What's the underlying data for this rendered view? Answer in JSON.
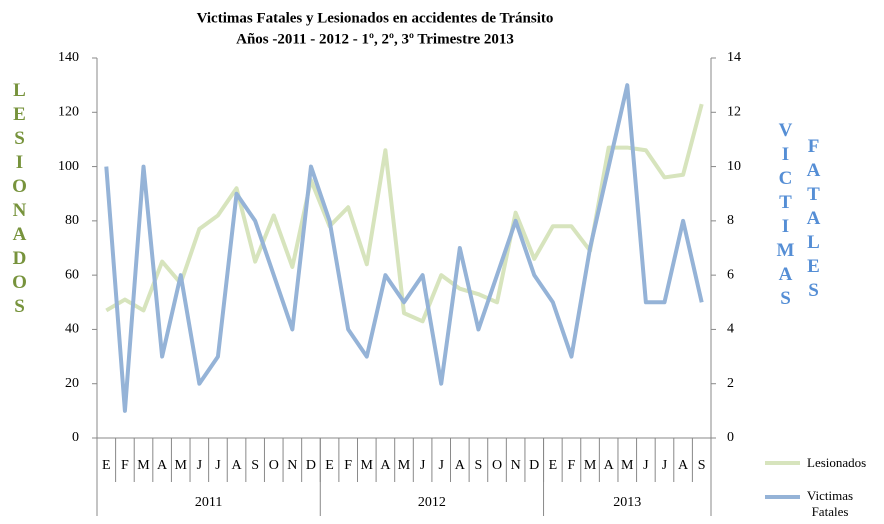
{
  "chart_data": {
    "type": "line",
    "title": "Victimas Fatales y Lesionados en accidentes de Tránsito",
    "subtitle": "Años -2011 - 2012 - 1º, 2º, 3º  Trimestre 2013",
    "ylabel": "LESIONADOS",
    "y2label": [
      "VICTIMAS",
      "FATALES"
    ],
    "categories": [
      "E",
      "F",
      "M",
      "A",
      "M",
      "J",
      "J",
      "A",
      "S",
      "O",
      "N",
      "D",
      "E",
      "F",
      "M",
      "A",
      "M",
      "J",
      "J",
      "A",
      "S",
      "O",
      "N",
      "D",
      "E",
      "F",
      "M",
      "A",
      "M",
      "J",
      "J",
      "A",
      "S"
    ],
    "years": [
      "2011",
      "2012",
      "2013"
    ],
    "series": [
      {
        "name": "Lesionados",
        "color": "#d7e4bd",
        "values": [
          47,
          51,
          47,
          65,
          57,
          77,
          82,
          92,
          65,
          82,
          63,
          95,
          78,
          85,
          64,
          106,
          46,
          43,
          60,
          55,
          53,
          50,
          83,
          66,
          78,
          78,
          69,
          107,
          107,
          106,
          96,
          97,
          123
        ]
      },
      {
        "name": "Victimas Fatales",
        "color": "#95b3d7",
        "axis": "y2",
        "values": [
          10,
          1,
          10,
          3,
          6,
          2,
          3,
          9,
          8,
          6,
          4,
          10,
          8,
          4,
          3,
          6,
          5,
          6,
          2,
          7,
          4,
          6,
          8,
          6,
          5,
          3,
          7,
          10,
          13,
          5,
          5,
          8,
          5
        ]
      }
    ],
    "ylim": [
      0,
      140
    ],
    "yticks": [
      0,
      20,
      40,
      60,
      80,
      100,
      120,
      140
    ],
    "y2lim": [
      0,
      14
    ],
    "y2ticks": [
      0,
      2,
      4,
      6,
      8,
      10,
      12,
      14
    ],
    "grid": false,
    "legend": "right"
  }
}
